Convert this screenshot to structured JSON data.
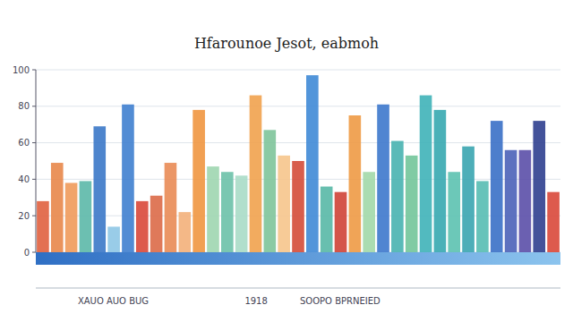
{
  "chart_data": {
    "type": "bar",
    "title": "Hfarounoe Jesot, eabmoh",
    "annotations": [
      "XAUO AUO BUG",
      "1918",
      "SOOPO BPRNEIED"
    ],
    "categories": [
      null,
      null,
      null,
      null,
      null,
      null,
      null,
      null,
      null,
      null,
      null,
      null,
      null,
      null,
      null,
      null,
      null,
      null,
      null,
      null,
      null,
      null,
      null,
      null,
      null,
      null,
      null,
      null,
      null,
      null,
      null,
      null,
      null,
      null,
      null,
      null,
      null
    ],
    "values": [
      28,
      49,
      38,
      39,
      69,
      14,
      81,
      28,
      31,
      49,
      22,
      78,
      47,
      44,
      42,
      86,
      67,
      53,
      50,
      97,
      36,
      33,
      75,
      44,
      81,
      61,
      53,
      86,
      78,
      44,
      58,
      39,
      72,
      56,
      56,
      72,
      33
    ],
    "colors": [
      "#e0613f",
      "#e8874a",
      "#ef9a5a",
      "#5cb8a8",
      "#3b78c8",
      "#8ec6e6",
      "#3f80cf",
      "#d9483a",
      "#dc6a48",
      "#e98b55",
      "#f3b07a",
      "#ef9640",
      "#9fd6b0",
      "#6cc1a8",
      "#a8dcc6",
      "#f1a24e",
      "#7ec49a",
      "#f6c58c",
      "#d44b38",
      "#3f8ad6",
      "#58b8a6",
      "#cf4336",
      "#ee9a45",
      "#a2d8a8",
      "#3d78cc",
      "#48b3b0",
      "#72c59a",
      "#3fb3b8",
      "#36a8b0",
      "#5cc2b0",
      "#3aa5b0",
      "#56bcb2",
      "#3a70c6",
      "#4b62b8",
      "#5b4fa8",
      "#2f3f8f",
      "#d9483a"
    ],
    "ylim": [
      0,
      100
    ],
    "yticks": [
      0,
      20,
      40,
      60,
      80,
      100
    ],
    "grid": true
  }
}
